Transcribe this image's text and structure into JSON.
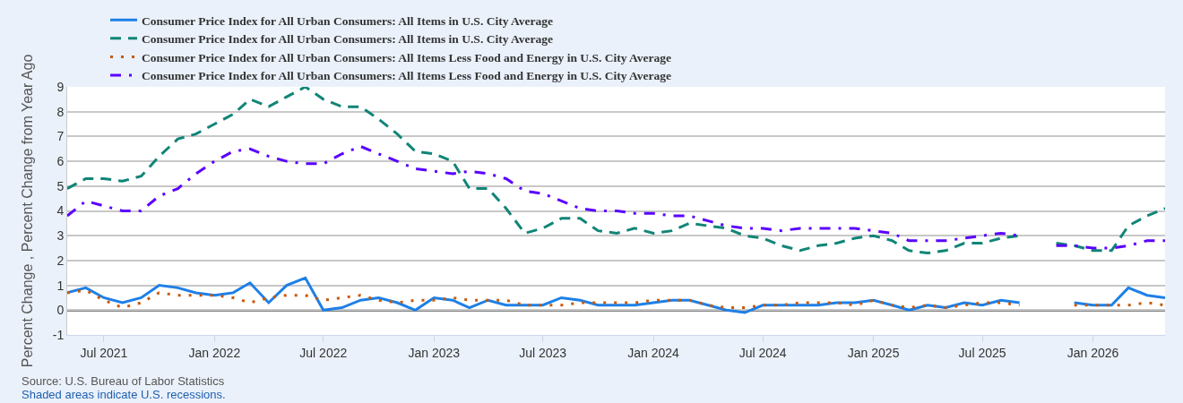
{
  "chart_data": {
    "type": "line",
    "ylabel": "Percent Change , Percent Change from Year Ago",
    "annotations": [
      "Source: U.S. Bureau of Labor Statistics",
      "Shaded areas indicate U.S. recessions."
    ],
    "x": [
      "2021-05",
      "2021-06",
      "2021-07",
      "2021-08",
      "2021-09",
      "2021-10",
      "2021-11",
      "2021-12",
      "2022-01",
      "2022-02",
      "2022-03",
      "2022-04",
      "2022-05",
      "2022-06",
      "2022-07",
      "2022-08",
      "2022-09",
      "2022-10",
      "2022-11",
      "2022-12",
      "2023-01",
      "2023-02",
      "2023-03",
      "2023-04",
      "2023-05",
      "2023-06",
      "2023-07",
      "2023-08",
      "2023-09",
      "2023-10",
      "2023-11",
      "2023-12",
      "2024-01",
      "2024-02",
      "2024-03",
      "2024-04",
      "2024-05",
      "2024-06",
      "2024-07",
      "2024-08",
      "2024-09",
      "2024-10",
      "2024-11",
      "2024-12",
      "2025-01",
      "2025-02",
      "2025-03",
      "2025-04",
      "2025-05",
      "2025-06",
      "2025-07",
      "2025-08",
      "2025-09",
      "2025-10",
      "2025-11",
      "2025-12",
      "2026-01",
      "2026-02",
      "2026-03",
      "2026-04",
      "2026-05"
    ],
    "xlim": [
      "2021-05",
      "2026-05"
    ],
    "xticks": [
      {
        "value": "2021-07",
        "label": "Jul 2021"
      },
      {
        "value": "2022-01",
        "label": "Jan 2022"
      },
      {
        "value": "2022-07",
        "label": "Jul 2022"
      },
      {
        "value": "2023-01",
        "label": "Jan 2023"
      },
      {
        "value": "2023-07",
        "label": "Jul 2023"
      },
      {
        "value": "2024-01",
        "label": "Jan 2024"
      },
      {
        "value": "2024-07",
        "label": "Jul 2024"
      },
      {
        "value": "2025-01",
        "label": "Jan 2025"
      },
      {
        "value": "2025-07",
        "label": "Jul 2025"
      },
      {
        "value": "2026-01",
        "label": "Jan 2026"
      }
    ],
    "ylim": [
      -1,
      9
    ],
    "yticks": [
      -1,
      0,
      1,
      2,
      3,
      4,
      5,
      6,
      7,
      8,
      9
    ],
    "grid": "y",
    "legend": "top left",
    "ref_lines": [
      {
        "axis": "y",
        "value": 0,
        "color": "#000000"
      }
    ],
    "series": [
      {
        "name": "Consumer Price Index for All Urban Consumers: All Items in U.S. City Average",
        "color": "#1e80e6",
        "line_style": "solid",
        "values": [
          0.7,
          0.9,
          0.5,
          0.3,
          0.5,
          1.0,
          0.9,
          0.7,
          0.6,
          0.7,
          1.1,
          0.3,
          1.0,
          1.3,
          0.0,
          0.1,
          0.4,
          0.5,
          0.3,
          0.0,
          0.5,
          0.4,
          0.1,
          0.4,
          0.2,
          0.2,
          0.2,
          0.5,
          0.4,
          0.2,
          0.2,
          0.2,
          0.3,
          0.4,
          0.4,
          0.2,
          0.0,
          -0.1,
          0.2,
          0.2,
          0.2,
          0.2,
          0.3,
          0.3,
          0.4,
          0.2,
          0.0,
          0.2,
          0.1,
          0.3,
          0.2,
          0.4,
          0.3,
          null,
          null,
          0.3,
          0.2,
          0.2,
          0.9,
          0.6,
          0.5
        ]
      },
      {
        "name": "Consumer Price Index for All Urban Consumers: All Items in U.S. City Average",
        "color": "#108577",
        "line_style": "dashed",
        "values": [
          4.9,
          5.3,
          5.3,
          5.2,
          5.4,
          6.2,
          6.9,
          7.1,
          7.5,
          7.9,
          8.5,
          8.2,
          8.6,
          9.0,
          8.5,
          8.2,
          8.2,
          7.7,
          7.1,
          6.4,
          6.3,
          6.0,
          4.9,
          4.9,
          4.1,
          3.1,
          3.3,
          3.7,
          3.7,
          3.2,
          3.1,
          3.3,
          3.1,
          3.2,
          3.5,
          3.4,
          3.3,
          3.0,
          2.9,
          2.6,
          2.4,
          2.6,
          2.7,
          2.9,
          3.0,
          2.8,
          2.4,
          2.3,
          2.4,
          2.7,
          2.7,
          2.9,
          3.0,
          null,
          2.7,
          2.6,
          2.4,
          2.4,
          3.4,
          3.8,
          4.1
        ]
      },
      {
        "name": "Consumer Price Index for All Urban Consumers: All Items Less Food and Energy in U.S. City Average",
        "color": "#c65a0c",
        "line_style": "dotted",
        "values": [
          0.7,
          0.8,
          0.4,
          0.1,
          0.3,
          0.7,
          0.6,
          0.6,
          0.6,
          0.5,
          0.3,
          0.5,
          0.6,
          0.6,
          0.4,
          0.5,
          0.6,
          0.4,
          0.3,
          0.4,
          0.4,
          0.5,
          0.4,
          0.4,
          0.4,
          0.2,
          0.2,
          0.2,
          0.3,
          0.3,
          0.3,
          0.3,
          0.4,
          0.4,
          0.4,
          0.2,
          0.1,
          0.1,
          0.2,
          0.2,
          0.3,
          0.3,
          0.3,
          0.2,
          0.4,
          0.2,
          0.1,
          0.2,
          0.1,
          0.2,
          0.3,
          0.3,
          0.2,
          null,
          null,
          0.2,
          0.2,
          0.2,
          0.2,
          0.3,
          0.2
        ]
      },
      {
        "name": "Consumer Price Index for All Urban Consumers: All Items Less Food and Energy in U.S. City Average",
        "color": "#5a00ff",
        "line_style": "dashdot",
        "values": [
          3.8,
          4.4,
          4.2,
          4.0,
          4.0,
          4.6,
          4.9,
          5.5,
          6.0,
          6.4,
          6.5,
          6.2,
          6.0,
          5.9,
          5.9,
          6.3,
          6.6,
          6.3,
          6.0,
          5.7,
          5.6,
          5.5,
          5.6,
          5.5,
          5.3,
          4.8,
          4.7,
          4.4,
          4.1,
          4.0,
          4.0,
          3.9,
          3.9,
          3.8,
          3.8,
          3.6,
          3.4,
          3.3,
          3.3,
          3.2,
          3.3,
          3.3,
          3.3,
          3.3,
          3.2,
          3.1,
          2.8,
          2.8,
          2.8,
          2.9,
          3.0,
          3.1,
          3.0,
          null,
          2.6,
          2.6,
          2.5,
          2.5,
          2.6,
          2.8,
          2.8
        ]
      }
    ]
  }
}
